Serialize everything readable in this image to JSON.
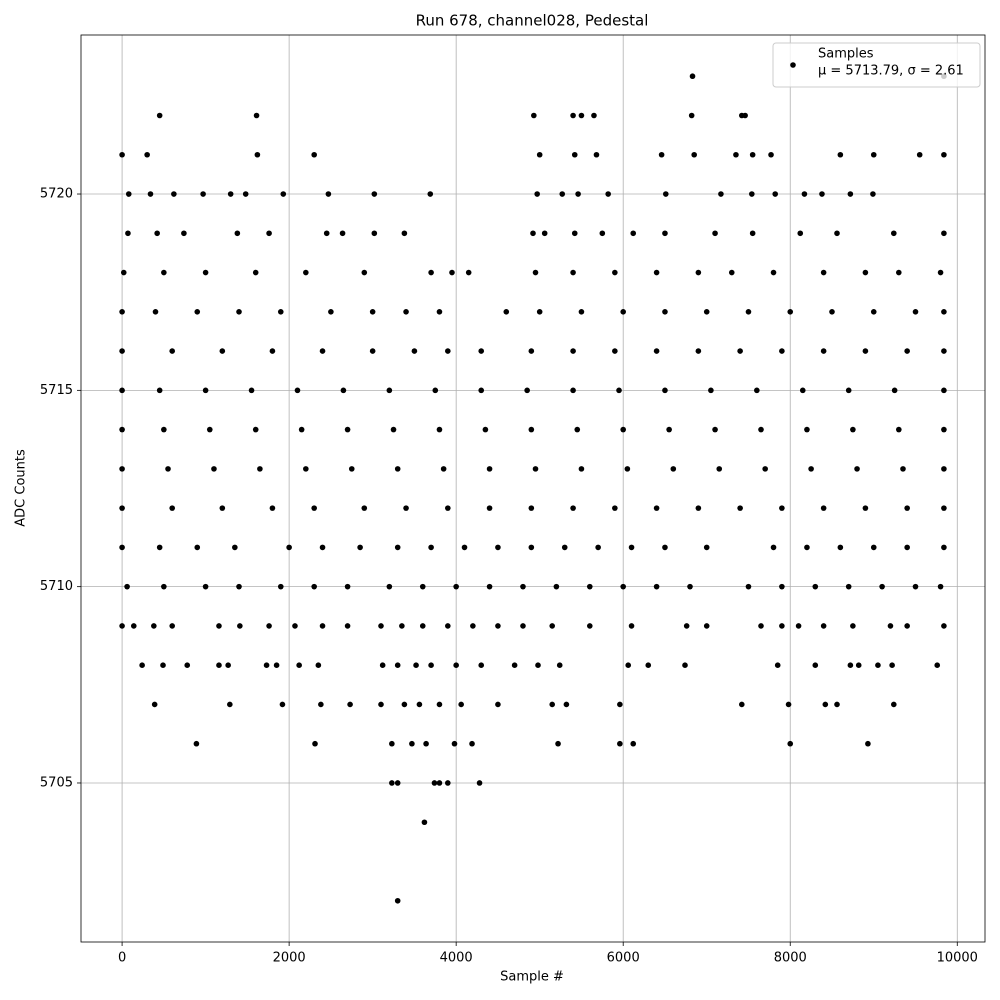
{
  "chart_data": {
    "type": "scatter",
    "title": "Run 678, channel028, Pedestal",
    "x_label": "Sample #",
    "y_label": "ADC Counts",
    "xlim": [
      -492,
      10332
    ],
    "ylim": [
      5700.95,
      5724.05
    ],
    "xticks": [
      0,
      2000,
      4000,
      6000,
      8000,
      10000
    ],
    "yticks": [
      5705,
      5710,
      5715,
      5720
    ],
    "grid": true,
    "legend": "upper right",
    "legend_note": "μ = 5713.79, σ = 2.61",
    "series": [
      {
        "name": "Samples",
        "color": "#000000",
        "x": [
          3300,
          3620,
          3230,
          3300,
          3740,
          3800,
          3900,
          4280,
          890,
          2310,
          3230,
          3470,
          3640,
          3980,
          4190,
          5220,
          5960,
          6120,
          8000,
          8930,
          390,
          1290,
          1920,
          2380,
          2730,
          3100,
          3380,
          3560,
          3800,
          4060,
          4500,
          5150,
          5320,
          5960,
          7420,
          7980,
          8420,
          8560,
          9240,
          240,
          490,
          780,
          1160,
          1270,
          1730,
          1850,
          2120,
          2350,
          3120,
          3300,
          3520,
          3700,
          4000,
          4300,
          4700,
          4980,
          5240,
          6060,
          6300,
          6740,
          7850,
          8300,
          8720,
          8820,
          9050,
          9220,
          9760,
          0,
          140,
          380,
          600,
          1160,
          1410,
          1760,
          2070,
          2400,
          2700,
          3100,
          3350,
          3600,
          3900,
          4200,
          4500,
          4800,
          5150,
          5600,
          6100,
          6760,
          7000,
          7650,
          7900,
          8100,
          8400,
          8750,
          9200,
          9400,
          9840,
          60,
          500,
          1000,
          1400,
          1900,
          2300,
          2700,
          3200,
          3600,
          4000,
          4400,
          4800,
          5200,
          5600,
          6000,
          6400,
          6800,
          7500,
          7900,
          8300,
          8700,
          9100,
          9500,
          9800,
          0,
          450,
          900,
          1350,
          2000,
          2400,
          2850,
          3300,
          3700,
          4100,
          4500,
          4900,
          5300,
          5700,
          6100,
          6500,
          7000,
          7800,
          8200,
          8600,
          9000,
          9400,
          9840,
          0,
          600,
          1200,
          1800,
          2300,
          2900,
          3400,
          3900,
          4400,
          4900,
          5400,
          5900,
          6400,
          6900,
          7400,
          7900,
          8400,
          8900,
          9400,
          9840,
          0,
          550,
          1100,
          1650,
          2200,
          2750,
          3300,
          3850,
          4400,
          4950,
          5500,
          6050,
          6600,
          7150,
          7700,
          8250,
          8800,
          9350,
          9840,
          0,
          500,
          1050,
          1600,
          2150,
          2700,
          3250,
          3800,
          4350,
          4900,
          5450,
          6000,
          6550,
          7100,
          7650,
          8200,
          8750,
          9300,
          9840,
          0,
          450,
          1000,
          1550,
          2100,
          2650,
          3200,
          3750,
          4300,
          4850,
          5400,
          5950,
          6500,
          7050,
          7600,
          8150,
          8700,
          9250,
          9840,
          0,
          600,
          1200,
          1800,
          2400,
          3000,
          3500,
          3900,
          4300,
          4900,
          5400,
          5900,
          6400,
          6900,
          7400,
          7900,
          8400,
          8900,
          9400,
          9840,
          0,
          400,
          900,
          1400,
          1900,
          2500,
          3000,
          3400,
          3800,
          4600,
          5000,
          5500,
          6000,
          6500,
          7000,
          7500,
          8000,
          8500,
          9000,
          9500,
          9840,
          20,
          500,
          1000,
          1600,
          2200,
          2900,
          3700,
          3950,
          4150,
          4950,
          5400,
          5900,
          6400,
          6900,
          7300,
          7800,
          8400,
          8900,
          9300,
          9800,
          70,
          420,
          740,
          1380,
          1760,
          2450,
          2640,
          3020,
          3380,
          4920,
          5060,
          5420,
          5750,
          6120,
          6500,
          7100,
          7550,
          8120,
          8560,
          9240,
          9840,
          80,
          340,
          620,
          970,
          1300,
          1480,
          1930,
          2470,
          3020,
          3690,
          4970,
          5270,
          5460,
          5820,
          6510,
          7170,
          7540,
          7820,
          8170,
          8380,
          8720,
          8990,
          0,
          300,
          1620,
          2300,
          5000,
          5420,
          5680,
          6460,
          6850,
          7350,
          7550,
          7770,
          8600,
          9000,
          9550,
          9840,
          450,
          1610,
          4930,
          5400,
          5500,
          5650,
          6820,
          7420,
          7460,
          6830,
          9840
        ],
        "values": [
          5702,
          5704,
          5705,
          5705,
          5705,
          5705,
          5705,
          5705,
          5706,
          5706,
          5706,
          5706,
          5706,
          5706,
          5706,
          5706,
          5706,
          5706,
          5706,
          5706,
          5707,
          5707,
          5707,
          5707,
          5707,
          5707,
          5707,
          5707,
          5707,
          5707,
          5707,
          5707,
          5707,
          5707,
          5707,
          5707,
          5707,
          5707,
          5707,
          5708,
          5708,
          5708,
          5708,
          5708,
          5708,
          5708,
          5708,
          5708,
          5708,
          5708,
          5708,
          5708,
          5708,
          5708,
          5708,
          5708,
          5708,
          5708,
          5708,
          5708,
          5708,
          5708,
          5708,
          5708,
          5708,
          5708,
          5708,
          5709,
          5709,
          5709,
          5709,
          5709,
          5709,
          5709,
          5709,
          5709,
          5709,
          5709,
          5709,
          5709,
          5709,
          5709,
          5709,
          5709,
          5709,
          5709,
          5709,
          5709,
          5709,
          5709,
          5709,
          5709,
          5709,
          5709,
          5709,
          5709,
          5709,
          5710,
          5710,
          5710,
          5710,
          5710,
          5710,
          5710,
          5710,
          5710,
          5710,
          5710,
          5710,
          5710,
          5710,
          5710,
          5710,
          5710,
          5710,
          5710,
          5710,
          5710,
          5710,
          5710,
          5710,
          5711,
          5711,
          5711,
          5711,
          5711,
          5711,
          5711,
          5711,
          5711,
          5711,
          5711,
          5711,
          5711,
          5711,
          5711,
          5711,
          5711,
          5711,
          5711,
          5711,
          5711,
          5711,
          5711,
          5712,
          5712,
          5712,
          5712,
          5712,
          5712,
          5712,
          5712,
          5712,
          5712,
          5712,
          5712,
          5712,
          5712,
          5712,
          5712,
          5712,
          5712,
          5712,
          5712,
          5713,
          5713,
          5713,
          5713,
          5713,
          5713,
          5713,
          5713,
          5713,
          5713,
          5713,
          5713,
          5713,
          5713,
          5713,
          5713,
          5713,
          5713,
          5713,
          5714,
          5714,
          5714,
          5714,
          5714,
          5714,
          5714,
          5714,
          5714,
          5714,
          5714,
          5714,
          5714,
          5714,
          5714,
          5714,
          5714,
          5714,
          5714,
          5715,
          5715,
          5715,
          5715,
          5715,
          5715,
          5715,
          5715,
          5715,
          5715,
          5715,
          5715,
          5715,
          5715,
          5715,
          5715,
          5715,
          5715,
          5715,
          5716,
          5716,
          5716,
          5716,
          5716,
          5716,
          5716,
          5716,
          5716,
          5716,
          5716,
          5716,
          5716,
          5716,
          5716,
          5716,
          5716,
          5716,
          5716,
          5716,
          5717,
          5717,
          5717,
          5717,
          5717,
          5717,
          5717,
          5717,
          5717,
          5717,
          5717,
          5717,
          5717,
          5717,
          5717,
          5717,
          5717,
          5717,
          5717,
          5717,
          5717,
          5718,
          5718,
          5718,
          5718,
          5718,
          5718,
          5718,
          5718,
          5718,
          5718,
          5718,
          5718,
          5718,
          5718,
          5718,
          5718,
          5718,
          5718,
          5718,
          5718,
          5719,
          5719,
          5719,
          5719,
          5719,
          5719,
          5719,
          5719,
          5719,
          5719,
          5719,
          5719,
          5719,
          5719,
          5719,
          5719,
          5719,
          5719,
          5719,
          5719,
          5719,
          5720,
          5720,
          5720,
          5720,
          5720,
          5720,
          5720,
          5720,
          5720,
          5720,
          5720,
          5720,
          5720,
          5720,
          5720,
          5720,
          5720,
          5720,
          5720,
          5720,
          5720,
          5720,
          5721,
          5721,
          5721,
          5721,
          5721,
          5721,
          5721,
          5721,
          5721,
          5721,
          5721,
          5721,
          5721,
          5721,
          5721,
          5721,
          5722,
          5722,
          5722,
          5722,
          5722,
          5722,
          5722,
          5722,
          5722,
          5723,
          5723
        ]
      }
    ]
  }
}
